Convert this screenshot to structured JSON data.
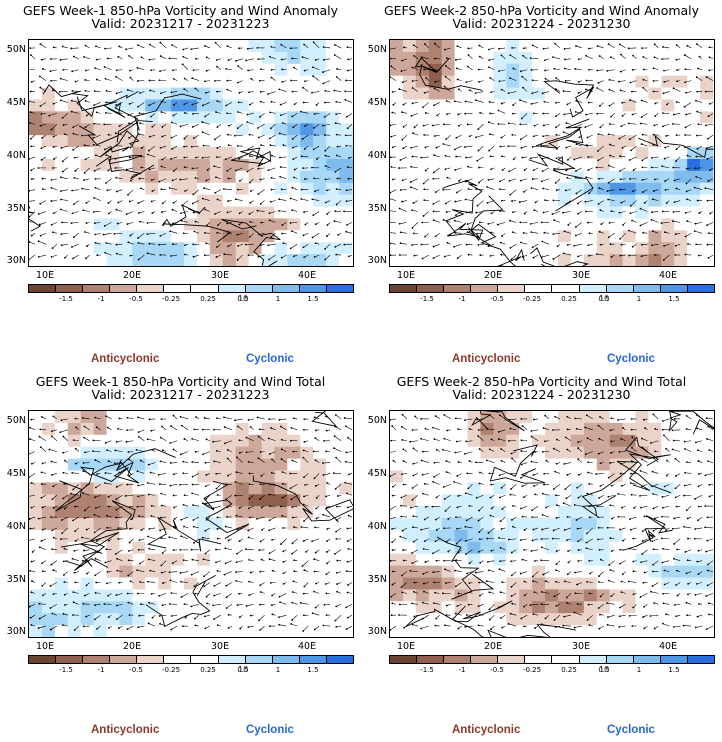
{
  "panels": [
    {
      "title": "GEFS Week-1 850-hPa Vorticity and Wind Anomaly",
      "valid": "Valid: 20231217 - 20231223",
      "seed": 11
    },
    {
      "title": "GEFS Week-2 850-hPa Vorticity and Wind Anomaly",
      "valid": "Valid: 20231224 - 20231230",
      "seed": 23
    },
    {
      "title": "GEFS Week-1 850-hPa Vorticity and Wind Total",
      "valid": "Valid: 20231217 - 20231223",
      "seed": 37
    },
    {
      "title": "GEFS Week-2 850-hPa Vorticity and Wind Total",
      "valid": "Valid: 20231224 - 20231230",
      "seed": 51
    }
  ],
  "lat_labels": [
    "50N",
    "45N",
    "40N",
    "35N",
    "30N"
  ],
  "lon_labels": [
    "10E",
    "20E",
    "30E",
    "40E"
  ],
  "colorbar": {
    "colors": [
      "#6b4433",
      "#8d5f4c",
      "#ae8170",
      "#cda89a",
      "#ead3c9",
      "#ffffff",
      "#ffffff",
      "#d2efff",
      "#a8d8f5",
      "#80bbee",
      "#4f97e6",
      "#2a6fe0"
    ],
    "ticks": [
      "-1.5",
      "-1",
      "-0.5",
      "-0.25",
      "0.25",
      "0.5",
      "1",
      "1.5"
    ],
    "scale": "10"
  },
  "labels": {
    "anticyclonic": "Anticyclonic",
    "cyclonic": "Cyclonic"
  }
}
